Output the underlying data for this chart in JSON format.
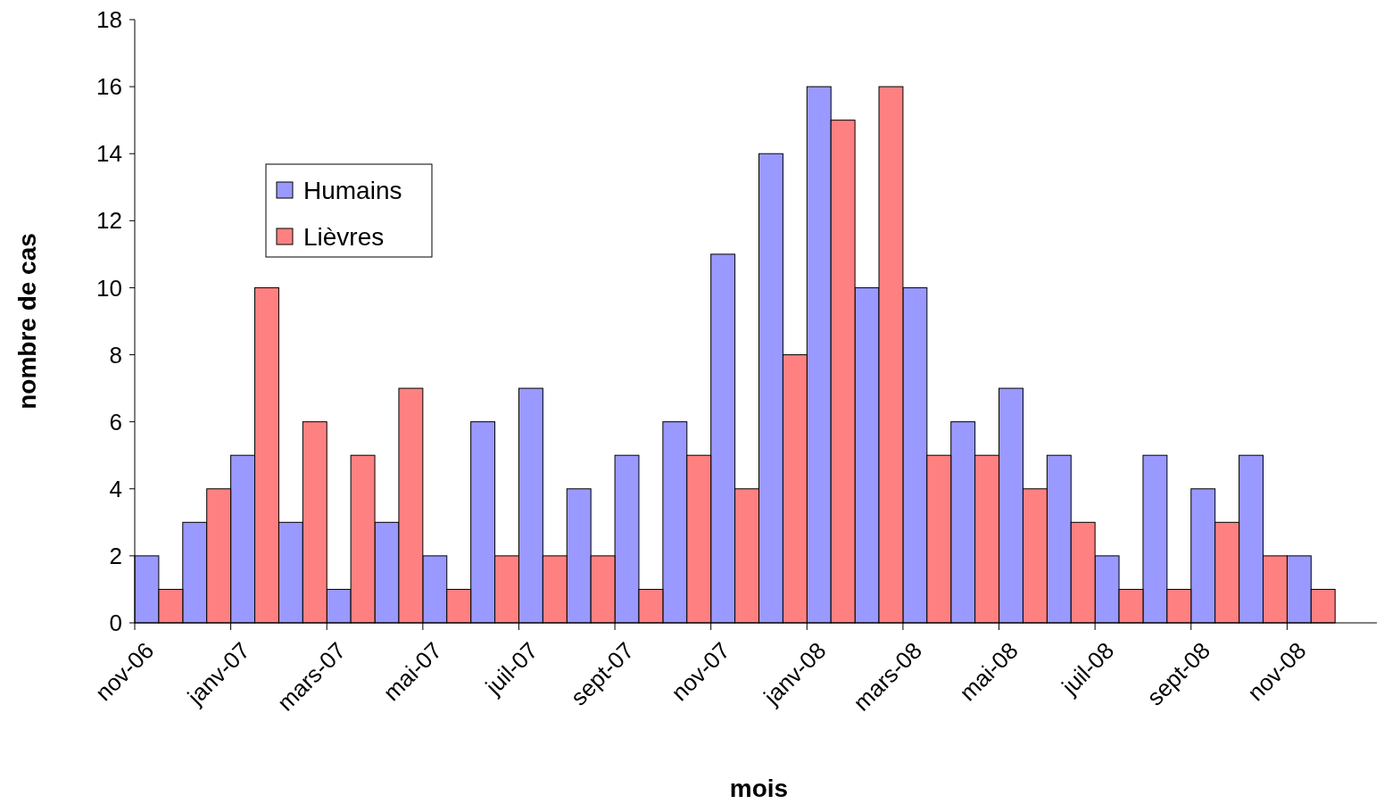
{
  "chart_data": {
    "type": "bar",
    "xlabel": "mois",
    "ylabel": "nombre de cas",
    "categories": [
      "nov-06",
      null,
      "janv-07",
      null,
      "mars-07",
      null,
      "mai-07",
      null,
      "juil-07",
      null,
      "sept-07",
      null,
      "nov-07",
      null,
      "janv-08",
      null,
      "mars-08",
      null,
      "mai-08",
      null,
      "juil-08",
      null,
      "sept-08",
      null,
      "nov-08",
      null
    ],
    "series": [
      {
        "name": "Humains",
        "color": "#9999ff",
        "values": [
          2,
          3,
          5,
          3,
          1,
          3,
          2,
          6,
          7,
          4,
          5,
          6,
          11,
          14,
          16,
          10,
          10,
          6,
          7,
          5,
          2,
          5,
          4,
          5,
          2,
          null
        ]
      },
      {
        "name": "Lièvres",
        "color": "#ff8080",
        "values": [
          1,
          4,
          10,
          6,
          5,
          7,
          1,
          2,
          2,
          2,
          1,
          5,
          4,
          8,
          15,
          16,
          5,
          5,
          4,
          3,
          1,
          1,
          3,
          2,
          1,
          null
        ]
      }
    ],
    "ylim": [
      0,
      18
    ],
    "yticks": [
      0,
      2,
      4,
      6,
      8,
      10,
      12,
      14,
      16,
      18
    ],
    "grid": false,
    "legend": "top left"
  }
}
